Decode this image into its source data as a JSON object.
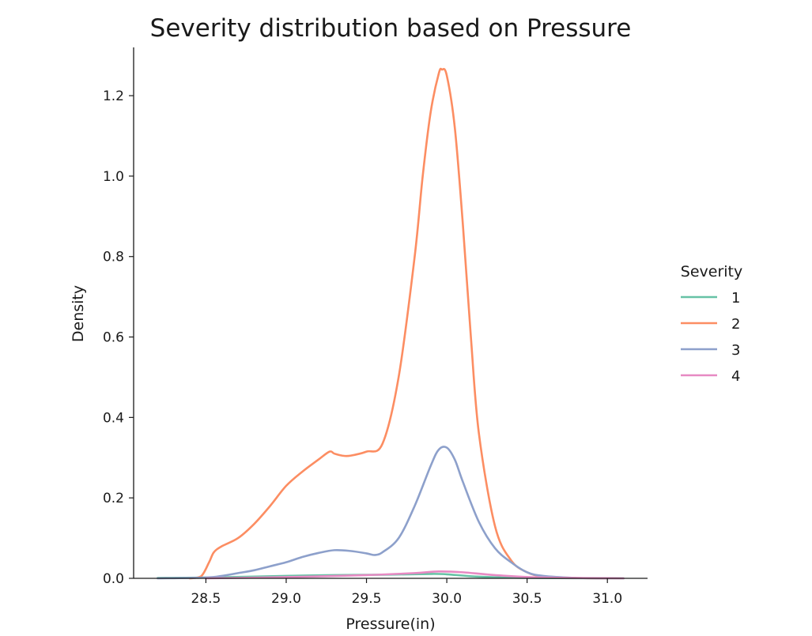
{
  "chart_data": {
    "type": "line",
    "title": "Severity distribution based on Pressure",
    "xlabel": "Pressure(in)",
    "ylabel": "Density",
    "xlim": [
      28.05,
      31.25
    ],
    "ylim": [
      0.0,
      1.32
    ],
    "xticks": [
      28.5,
      29.0,
      29.5,
      30.0,
      30.5,
      31.0
    ],
    "xtick_labels": [
      "28.5",
      "29.0",
      "29.5",
      "30.0",
      "30.5",
      "31.0"
    ],
    "yticks": [
      0.0,
      0.2,
      0.4,
      0.6,
      0.8,
      1.0,
      1.2
    ],
    "ytick_labels": [
      "0.0",
      "0.2",
      "0.4",
      "0.6",
      "0.8",
      "1.0",
      "1.2"
    ],
    "grid": false,
    "legend": {
      "title": "Severity",
      "position": "right"
    },
    "series": [
      {
        "name": "1",
        "color": "#66c2a5",
        "x": [
          28.2,
          28.5,
          29.0,
          29.3,
          29.6,
          29.9,
          30.0,
          30.2,
          30.5,
          31.1
        ],
        "y": [
          0.001,
          0.002,
          0.006,
          0.008,
          0.009,
          0.011,
          0.01,
          0.004,
          0.001,
          0.0
        ]
      },
      {
        "name": "2",
        "color": "#fc8d62",
        "x": [
          28.4,
          28.47,
          28.52,
          28.55,
          28.6,
          28.7,
          28.8,
          28.9,
          29.0,
          29.1,
          29.2,
          29.27,
          29.3,
          29.35,
          29.4,
          29.5,
          29.6,
          29.7,
          29.8,
          29.85,
          29.9,
          29.95,
          29.97,
          30.0,
          30.05,
          30.1,
          30.15,
          30.2,
          30.3,
          30.4,
          30.5,
          30.6,
          30.8,
          31.0
        ],
        "y": [
          0.0,
          0.005,
          0.04,
          0.065,
          0.08,
          0.1,
          0.135,
          0.18,
          0.23,
          0.265,
          0.295,
          0.315,
          0.31,
          0.305,
          0.305,
          0.315,
          0.335,
          0.5,
          0.8,
          1.0,
          1.16,
          1.255,
          1.265,
          1.25,
          1.12,
          0.88,
          0.6,
          0.36,
          0.13,
          0.045,
          0.015,
          0.005,
          0.001,
          0.0
        ]
      },
      {
        "name": "3",
        "color": "#8da0cb",
        "x": [
          28.2,
          28.5,
          28.6,
          28.7,
          28.8,
          28.9,
          29.0,
          29.1,
          29.2,
          29.3,
          29.4,
          29.5,
          29.55,
          29.6,
          29.7,
          29.8,
          29.9,
          29.95,
          30.0,
          30.05,
          30.1,
          30.2,
          30.3,
          30.4,
          30.5,
          30.6,
          30.8,
          31.0
        ],
        "y": [
          0.0,
          0.002,
          0.006,
          0.013,
          0.02,
          0.03,
          0.04,
          0.053,
          0.063,
          0.07,
          0.068,
          0.062,
          0.058,
          0.065,
          0.1,
          0.18,
          0.28,
          0.32,
          0.325,
          0.295,
          0.24,
          0.14,
          0.075,
          0.04,
          0.015,
          0.006,
          0.001,
          0.0
        ]
      },
      {
        "name": "4",
        "color": "#e78ac3",
        "x": [
          28.5,
          29.0,
          29.5,
          29.8,
          29.95,
          30.1,
          30.3,
          30.6,
          31.1
        ],
        "y": [
          0.0,
          0.003,
          0.008,
          0.013,
          0.017,
          0.015,
          0.008,
          0.002,
          0.0
        ]
      }
    ]
  }
}
